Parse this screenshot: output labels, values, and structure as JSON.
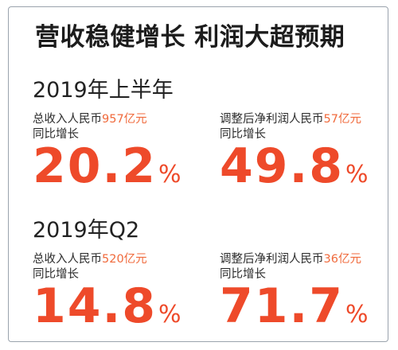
{
  "headline": "营收稳健增长 利润大超预期",
  "sections": [
    {
      "period": "2019年上半年",
      "metrics": [
        {
          "label": "总收入人民币",
          "amount": "957亿元",
          "growth_label": "同比增长",
          "value": "20.2",
          "unit": "%"
        },
        {
          "label": "调整后净利润人民币",
          "amount": "57亿元",
          "growth_label": "同比增长",
          "value": "49.8",
          "unit": "%"
        }
      ]
    },
    {
      "period": "2019年Q2",
      "metrics": [
        {
          "label": "总收入人民币",
          "amount": "520亿元",
          "growth_label": "同比增长",
          "value": "14.8",
          "unit": "%"
        },
        {
          "label": "调整后净利润人民币",
          "amount": "36亿元",
          "growth_label": "同比增长",
          "value": "71.7",
          "unit": "%"
        }
      ]
    }
  ],
  "colors": {
    "headline": "#1c1c1c",
    "amount": "#f06a3c",
    "value": "#ee4a2a",
    "border": "#9aa3ad"
  }
}
